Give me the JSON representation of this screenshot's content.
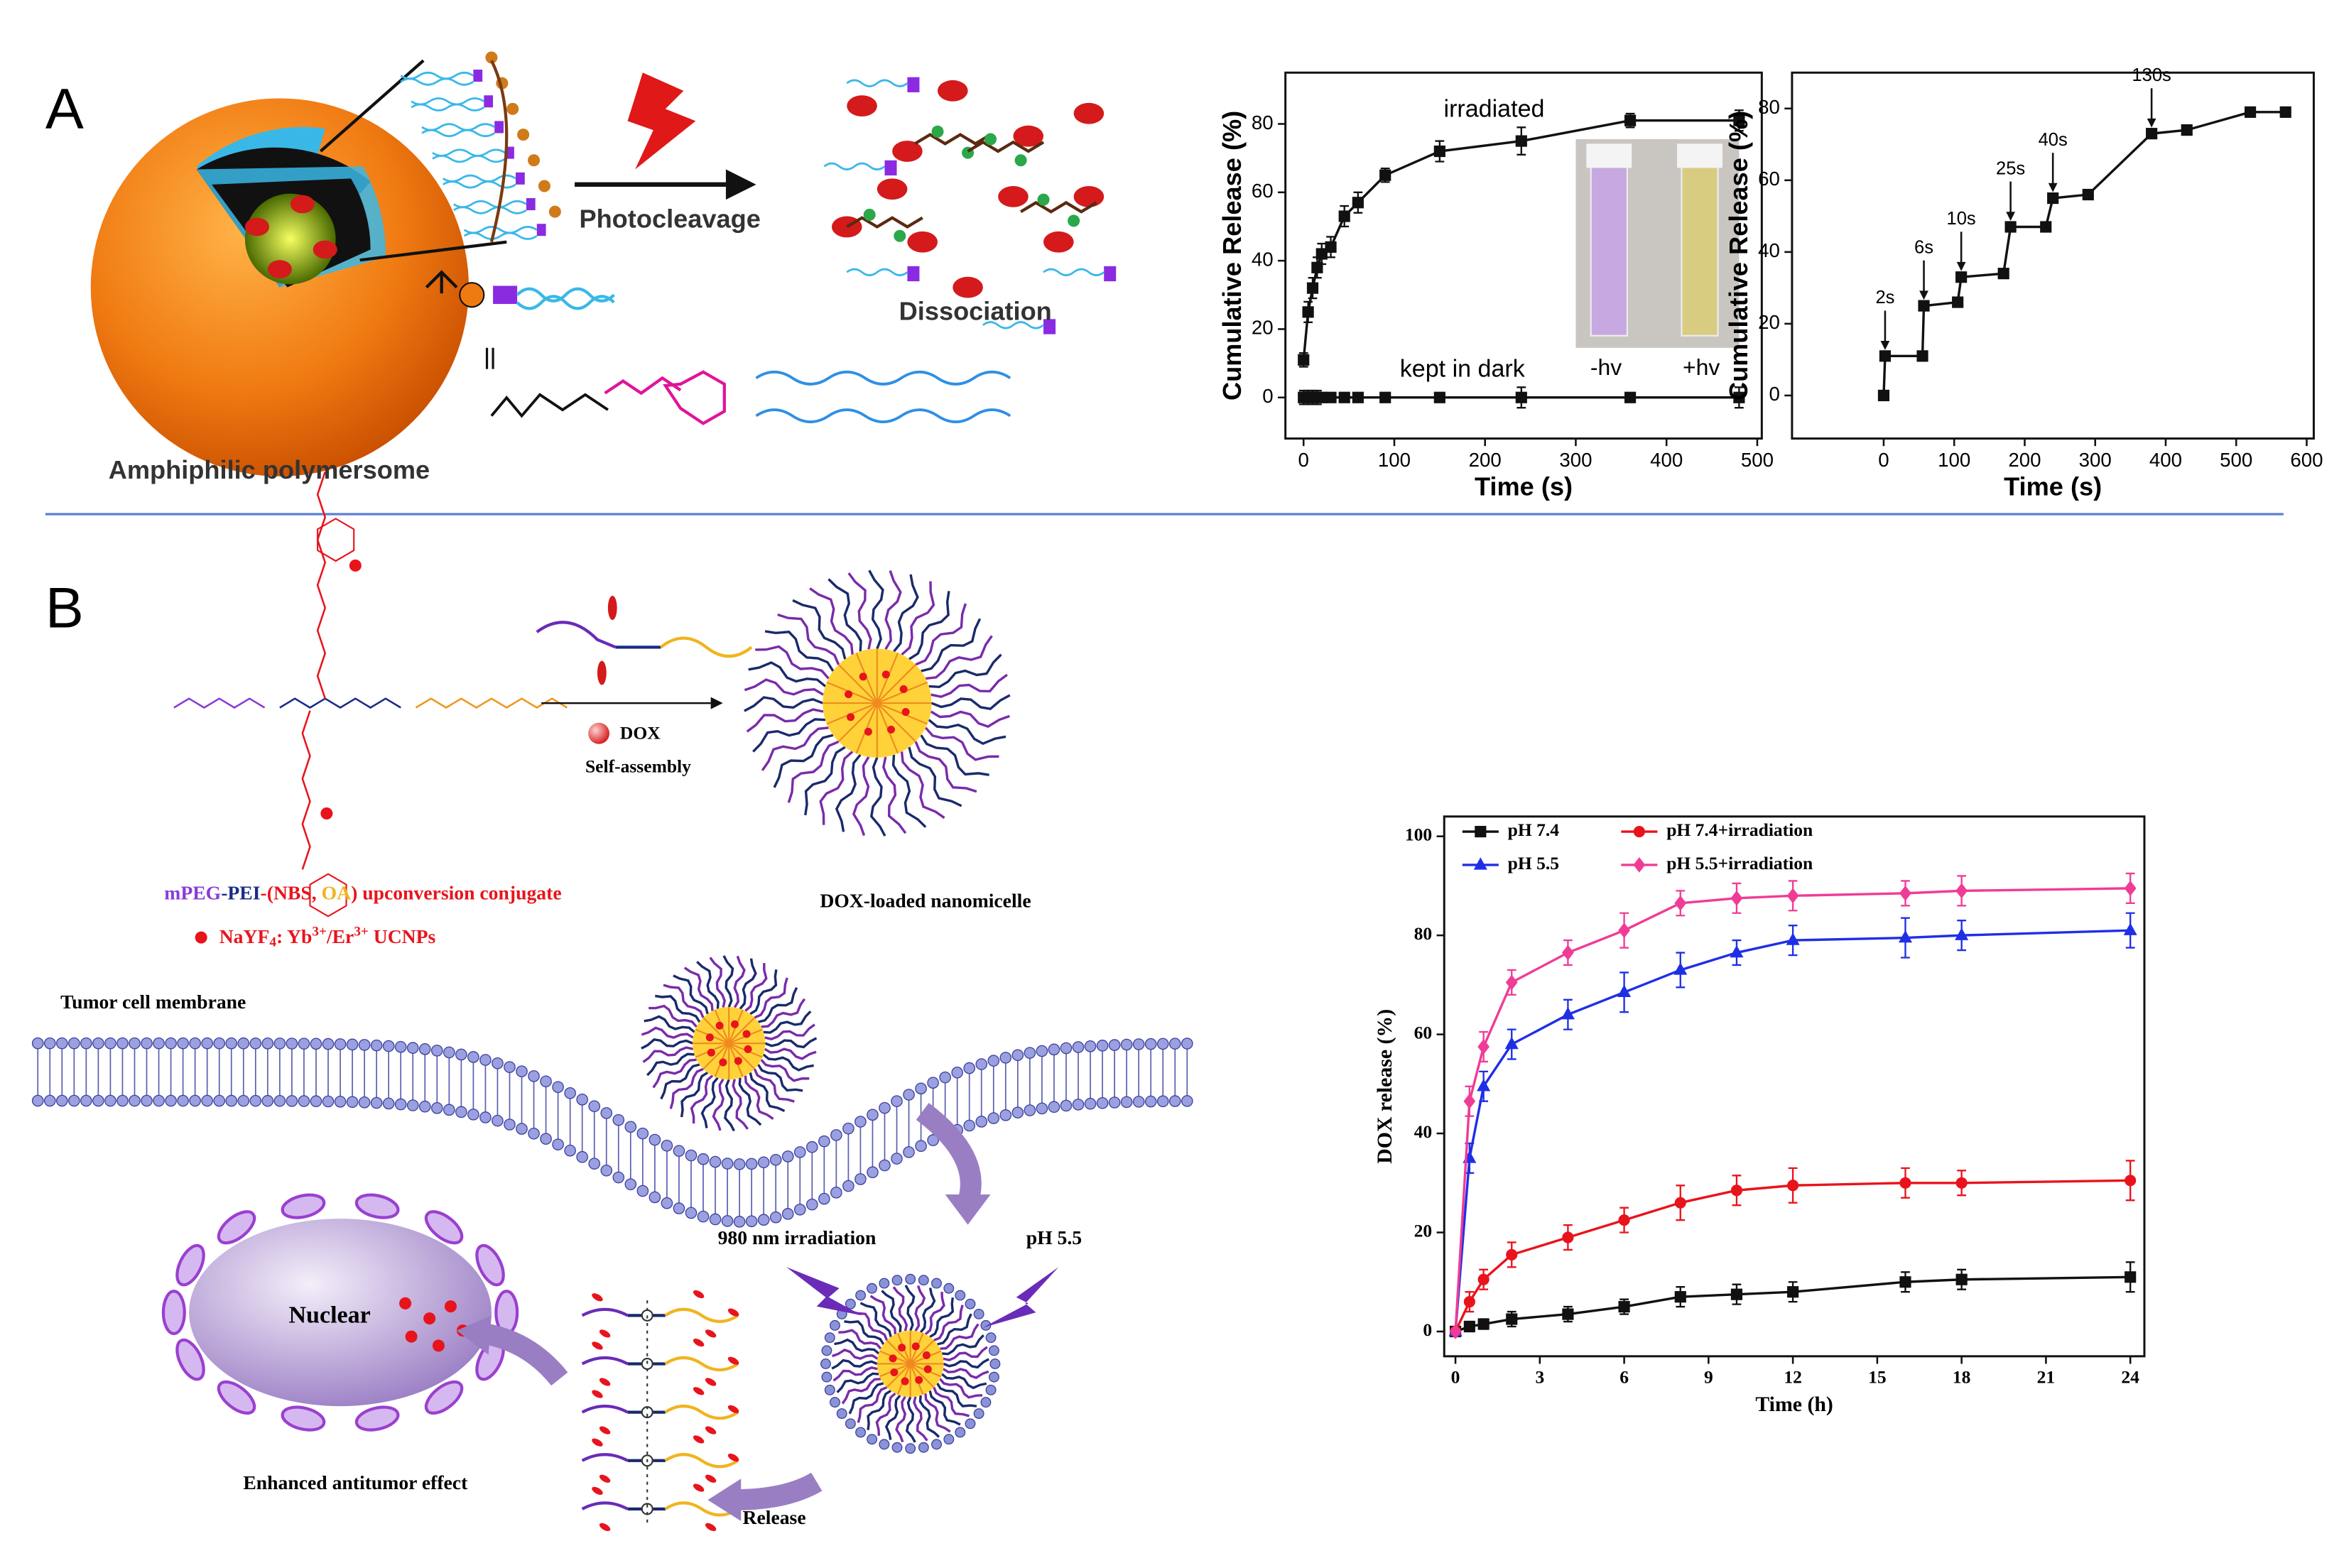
{
  "panels": {
    "a": {
      "letter": "A",
      "arrow_label": "Photocleavage",
      "product": "Dissociation",
      "particle": "Amphiphilic polymersome"
    },
    "b": {
      "letter": "B",
      "drug": "DOX",
      "process": "Self-assembly",
      "conjugate": [
        "mPEG",
        "-",
        "PEI",
        "-(",
        "NBS",
        ", ",
        "OA",
        ")",
        " upconversion conjugate"
      ],
      "ucnp": [
        "NaYF",
        "4",
        ": Yb",
        "3+",
        "/Er",
        "3+",
        " UCNPs"
      ],
      "micelle": "DOX-loaded nanomicelle",
      "membrane": "Tumor cell membrane",
      "irradiation": "980 nm irradiation",
      "ph": "pH 5.5",
      "nucleus": "Nuclear",
      "effect": "Enhanced antitumor effect",
      "release": "Release"
    }
  },
  "chart_data": [
    {
      "type": "line",
      "x_label": "Time (s)",
      "y_label": "Cumulative Release (%)",
      "xlim": [
        -20,
        505
      ],
      "ylim": [
        -12,
        95
      ],
      "xticks": [
        0,
        100,
        200,
        300,
        400,
        500
      ],
      "yticks": [
        0,
        20,
        40,
        60,
        80
      ],
      "annotations": [
        "irradiated",
        "kept in dark"
      ],
      "inset_labels": [
        "-hv",
        "+hv"
      ],
      "series": [
        {
          "color": "#111111",
          "marker": "square",
          "x": [
            0,
            5,
            10,
            15,
            20,
            30,
            45,
            60,
            90,
            150,
            240,
            360,
            480
          ],
          "values": [
            11,
            25,
            32,
            38,
            42,
            44,
            53,
            57,
            65,
            72,
            75,
            81,
            81
          ],
          "errors": [
            2,
            3,
            3,
            3,
            3,
            3,
            3,
            3,
            2,
            3,
            4,
            2,
            3
          ]
        },
        {
          "color": "#111111",
          "marker": "square",
          "x": [
            0,
            5,
            10,
            15,
            20,
            30,
            45,
            60,
            90,
            150,
            240,
            360,
            480
          ],
          "values": [
            0,
            0,
            0,
            0,
            0,
            0,
            0,
            0,
            0,
            0,
            0,
            0,
            0
          ],
          "errors": [
            2,
            2,
            2,
            2,
            1,
            1,
            1,
            1,
            1,
            1,
            3,
            1,
            3
          ]
        }
      ]
    },
    {
      "type": "line",
      "x_label": "Time (s)",
      "y_label": "Cumulative Release (%)",
      "xlim": [
        -130,
        610
      ],
      "ylim": [
        -12,
        90
      ],
      "xticks": [
        0,
        100,
        200,
        300,
        400,
        500,
        600
      ],
      "yticks": [
        0,
        20,
        40,
        60,
        80
      ],
      "series": [
        {
          "color": "#111111",
          "marker": "square",
          "x": [
            0,
            2,
            55,
            57,
            105,
            110,
            170,
            180,
            230,
            240,
            290,
            380,
            430,
            520,
            570
          ],
          "values": [
            0,
            11,
            11,
            25,
            26,
            33,
            34,
            47,
            47,
            55,
            56,
            73,
            74,
            79,
            79
          ]
        }
      ],
      "annotations": [
        {
          "text": "2s",
          "x": 2,
          "y": 11
        },
        {
          "text": "6s",
          "x": 57,
          "y": 25
        },
        {
          "text": "10s",
          "x": 110,
          "y": 33
        },
        {
          "text": "25s",
          "x": 180,
          "y": 47
        },
        {
          "text": "40s",
          "x": 240,
          "y": 55
        },
        {
          "text": "130s",
          "x": 380,
          "y": 73
        }
      ]
    },
    {
      "type": "line",
      "x_label": "Time (h)",
      "y_label": "DOX release (%)",
      "xlim": [
        -0.4,
        24.5
      ],
      "ylim": [
        -5,
        104
      ],
      "xticks": [
        0,
        3,
        6,
        9,
        12,
        15,
        18,
        21,
        24
      ],
      "yticks": [
        0,
        20,
        40,
        60,
        80,
        100
      ],
      "legend": "upper left",
      "series": [
        {
          "name": "pH 7.4",
          "color": "#111111",
          "marker": "square",
          "x": [
            0,
            0.5,
            1,
            2,
            4,
            6,
            8,
            10,
            12,
            16,
            18,
            24
          ],
          "values": [
            0,
            1,
            1.5,
            2.5,
            3.5,
            5,
            7,
            7.5,
            8,
            10,
            10.5,
            11
          ],
          "errors": [
            0.5,
            1,
            1,
            1.5,
            1.5,
            1.5,
            2,
            2,
            2,
            2,
            2,
            3
          ]
        },
        {
          "name": "pH 7.4+irradiation",
          "color": "#e8141c",
          "marker": "circle",
          "x": [
            0,
            0.5,
            1,
            2,
            4,
            6,
            8,
            10,
            12,
            16,
            18,
            24
          ],
          "values": [
            0,
            6,
            10.5,
            15.5,
            19,
            22.5,
            26,
            28.5,
            29.5,
            30,
            30,
            30.5
          ],
          "errors": [
            0.5,
            2,
            2,
            2.5,
            2.5,
            2.5,
            3.5,
            3,
            3.5,
            3,
            2.5,
            4
          ]
        },
        {
          "name": "pH 5.5",
          "color": "#1f2fe6",
          "marker": "triangle",
          "x": [
            0,
            0.5,
            1,
            2,
            4,
            6,
            8,
            10,
            12,
            16,
            18,
            24
          ],
          "values": [
            0,
            35,
            49.5,
            58,
            64,
            68.5,
            73,
            76.5,
            79,
            79.5,
            80,
            81
          ],
          "errors": [
            0.5,
            3,
            3,
            3,
            3,
            4,
            3.5,
            2.5,
            3,
            4,
            3,
            3.5
          ]
        },
        {
          "name": "pH 5.5+irradiation",
          "color": "#f03c96",
          "marker": "diamond",
          "x": [
            0,
            0.5,
            1,
            2,
            4,
            6,
            8,
            10,
            12,
            16,
            18,
            24
          ],
          "values": [
            0,
            46.5,
            57.5,
            70.5,
            76.5,
            81,
            86.5,
            87.5,
            88,
            88.5,
            89,
            89.5
          ],
          "errors": [
            0.5,
            3,
            3,
            2.5,
            2.5,
            3.5,
            2.5,
            3,
            3,
            2.5,
            3,
            3
          ]
        }
      ]
    }
  ]
}
